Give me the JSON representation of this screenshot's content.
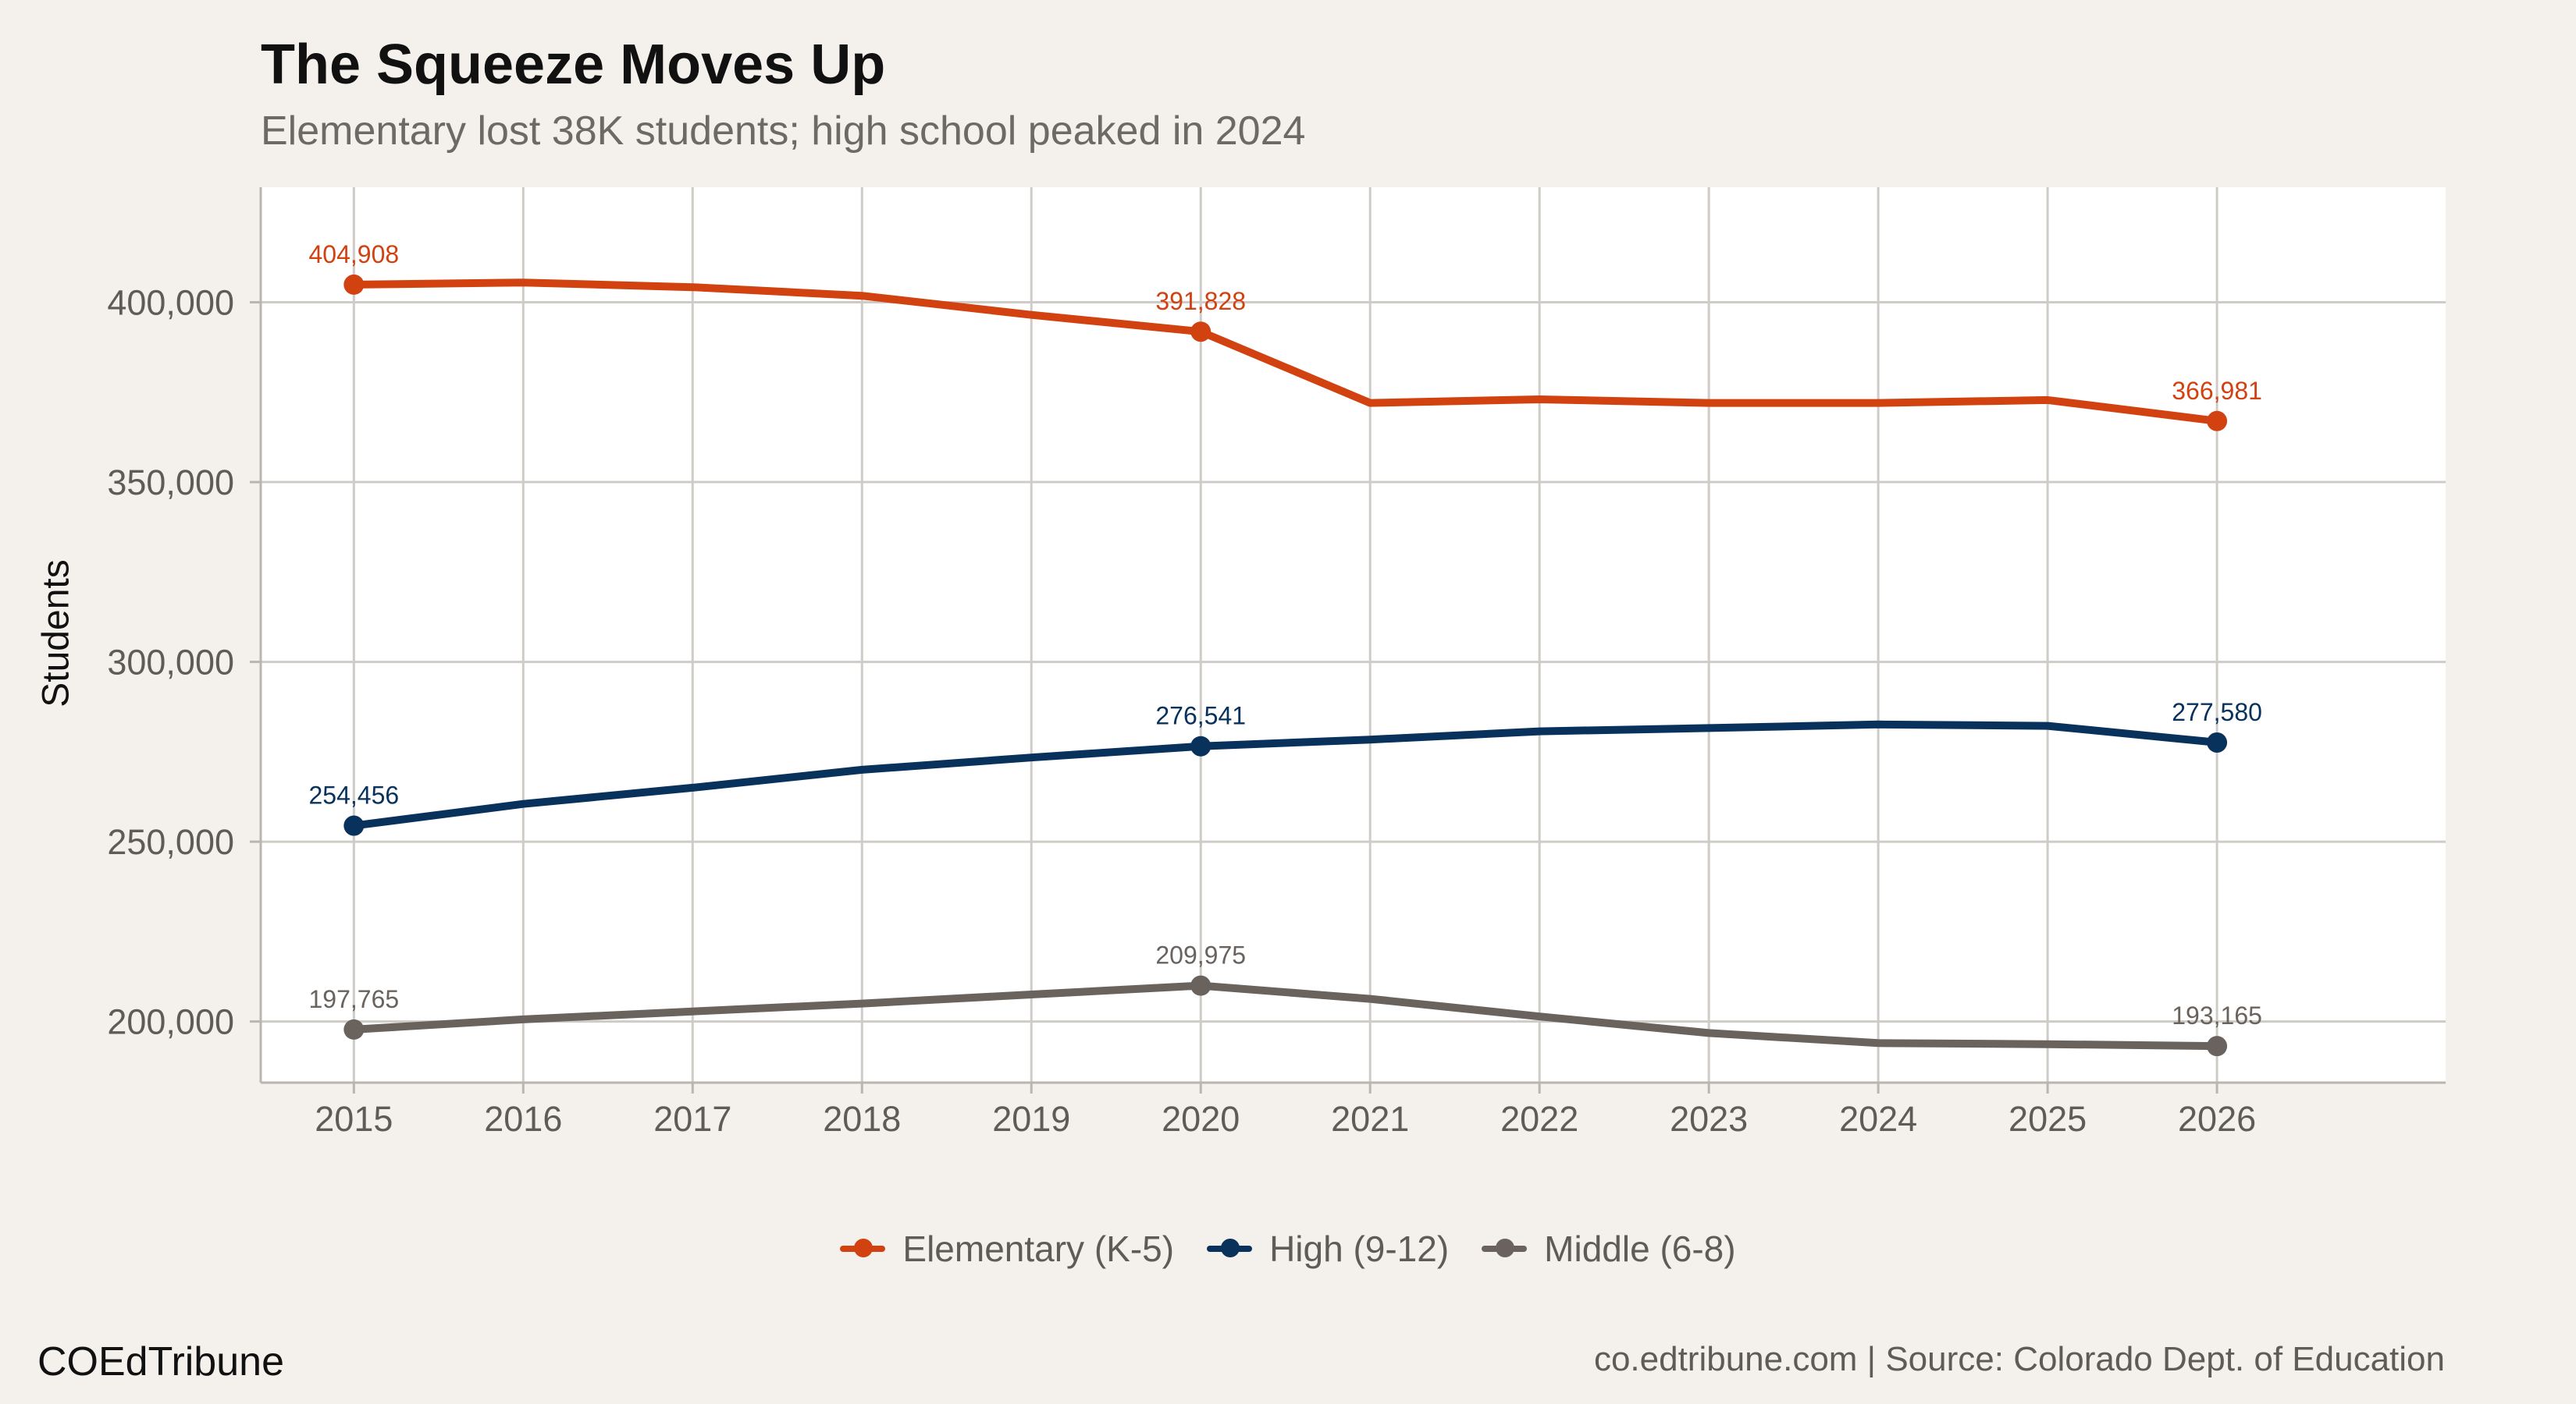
{
  "chart_data": {
    "type": "line",
    "title": "The Squeeze Moves Up",
    "subtitle": "Elementary lost 38K students; high school peaked in 2024",
    "ylabel": "Students",
    "xlabel": "",
    "x": [
      2015,
      2016,
      2017,
      2018,
      2019,
      2020,
      2021,
      2022,
      2023,
      2024,
      2025,
      2026
    ],
    "xlim": [
      2014.45,
      2027.35
    ],
    "ylim": [
      183000,
      432000
    ],
    "yticks": [
      200000,
      250000,
      300000,
      350000,
      400000
    ],
    "ytick_labels": [
      "200,000",
      "250,000",
      "300,000",
      "350,000",
      "400,000"
    ],
    "xtick_labels": [
      "2015",
      "2016",
      "2017",
      "2018",
      "2019",
      "2020",
      "2021",
      "2022",
      "2023",
      "2024",
      "2025",
      "2026"
    ],
    "grid": true,
    "legend_position": "bottom",
    "series": [
      {
        "name": "Elementary (K-5)",
        "color": "#d24211",
        "values": [
          404908,
          405500,
          404200,
          401800,
          396500,
          391828,
          372000,
          373000,
          372000,
          372000,
          372800,
          366981
        ],
        "marker_x": [
          2015,
          2020,
          2026
        ],
        "labels": [
          "404,908",
          "391,828",
          "366,981"
        ]
      },
      {
        "name": "High (9-12)",
        "color": "#08315c",
        "values": [
          254456,
          260500,
          265000,
          270000,
          273400,
          276541,
          278400,
          280700,
          281600,
          282600,
          282200,
          277580
        ],
        "marker_x": [
          2015,
          2020,
          2026
        ],
        "labels": [
          "254,456",
          "276,541",
          "277,580"
        ]
      },
      {
        "name": "Middle (6-8)",
        "color": "#69625d",
        "values": [
          197765,
          200600,
          202800,
          205000,
          207500,
          209975,
          206300,
          201400,
          196800,
          194000,
          193700,
          193165
        ],
        "marker_x": [
          2015,
          2020,
          2026
        ],
        "labels": [
          "197,765",
          "209,975",
          "193,165"
        ]
      }
    ]
  },
  "footer": {
    "brand": "COEdTribune",
    "source": "co.edtribune.com | Source: Colorado Dept. of Education"
  }
}
